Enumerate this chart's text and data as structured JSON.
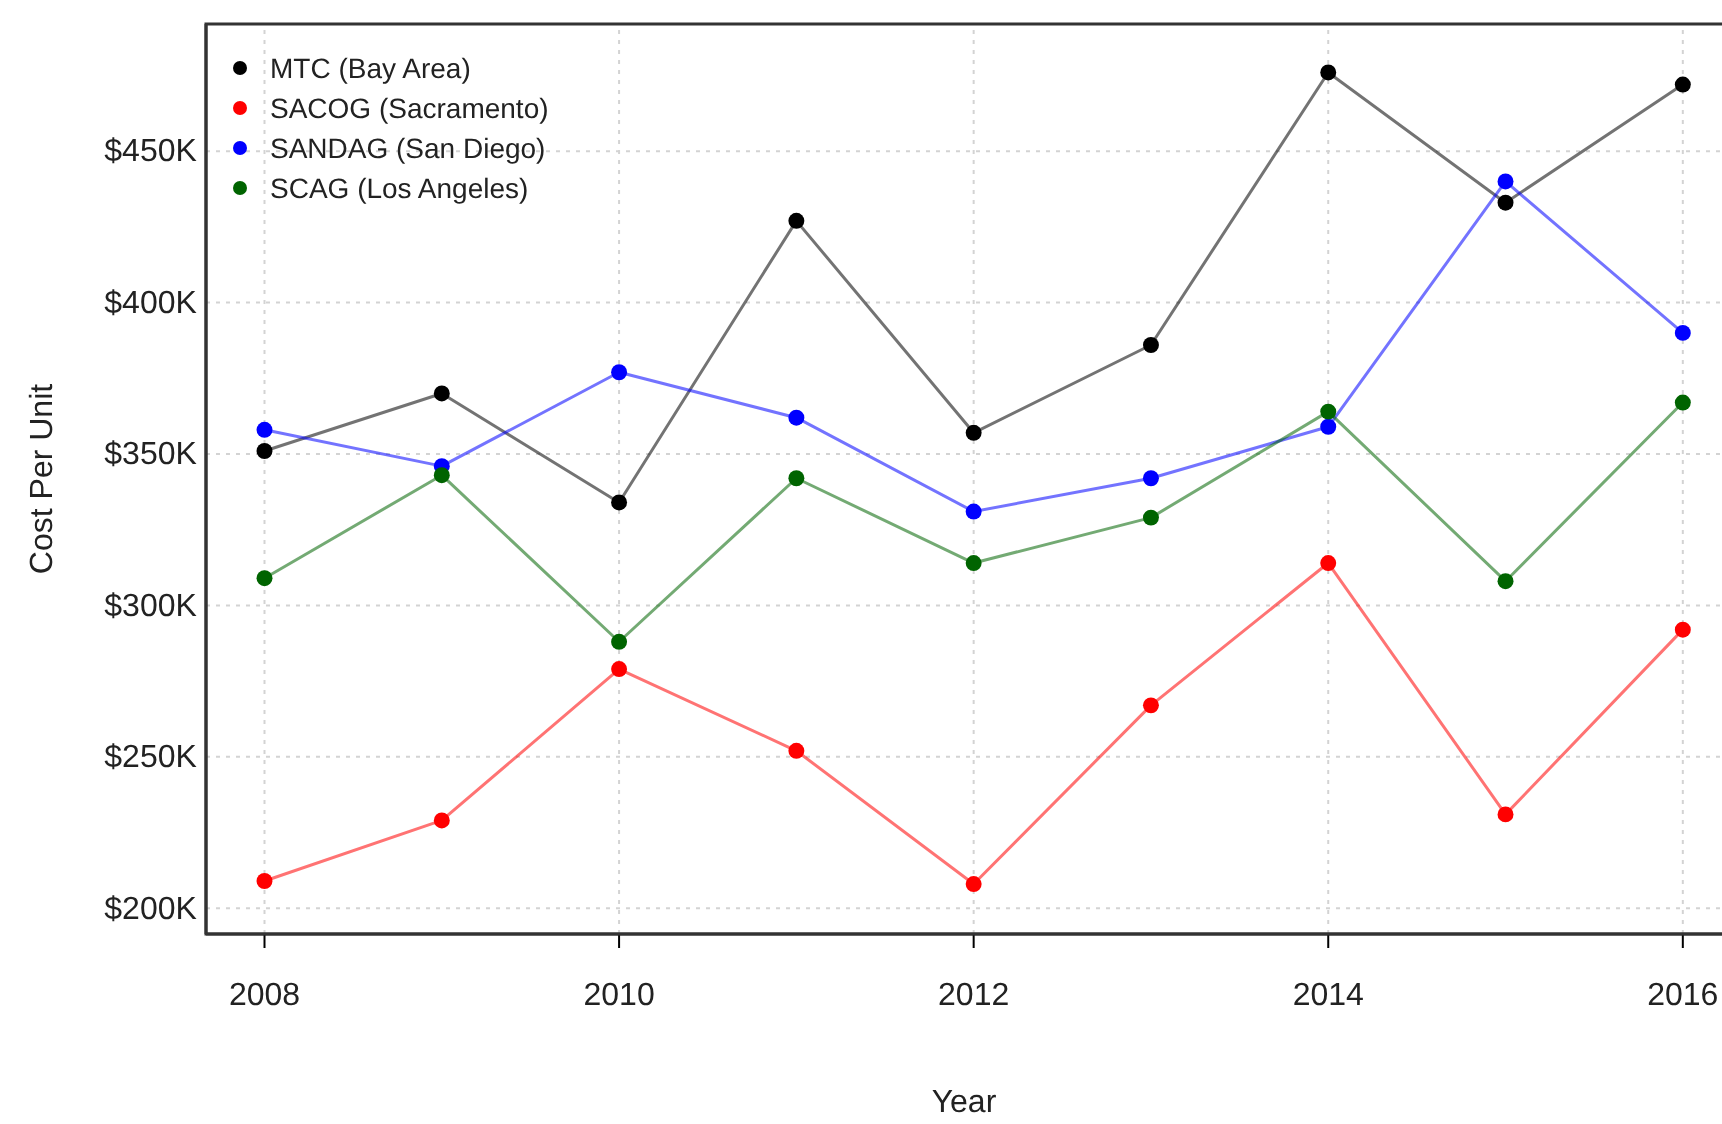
{
  "chart_data": {
    "type": "line",
    "xlabel": "Year",
    "ylabel": "Cost Per Unit",
    "x": [
      2008,
      2009,
      2010,
      2011,
      2012,
      2013,
      2014,
      2015,
      2016
    ],
    "series": [
      {
        "name": "MTC (Bay Area)",
        "color": "#000000",
        "values": [
          351,
          370,
          334,
          427,
          357,
          386,
          476,
          433,
          472
        ]
      },
      {
        "name": "SACOG (Sacramento)",
        "color": "#ff0000",
        "values": [
          209,
          229,
          279,
          252,
          208,
          267,
          314,
          231,
          292
        ]
      },
      {
        "name": "SANDAG (San Diego)",
        "color": "#0000ff",
        "values": [
          358,
          346,
          377,
          362,
          331,
          342,
          359,
          440,
          390
        ]
      },
      {
        "name": "SCAG (Los Angeles)",
        "color": "#006400",
        "values": [
          309,
          343,
          288,
          342,
          314,
          329,
          364,
          308,
          367
        ]
      }
    ],
    "xlim": [
      2007.67,
      2016.3
    ],
    "xticks": [
      2008,
      2010,
      2012,
      2014,
      2016
    ],
    "ylim": [
      191.5,
      492
    ],
    "yticks": [
      {
        "value": 200,
        "label": "$200K"
      },
      {
        "value": 250,
        "label": "$250K"
      },
      {
        "value": 300,
        "label": "$300K"
      },
      {
        "value": 350,
        "label": "$350K"
      },
      {
        "value": 400,
        "label": "$400K"
      },
      {
        "value": 450,
        "label": "$450K"
      }
    ],
    "grid": true,
    "legend": "top left",
    "marker": "circle",
    "line_style": "solid"
  }
}
